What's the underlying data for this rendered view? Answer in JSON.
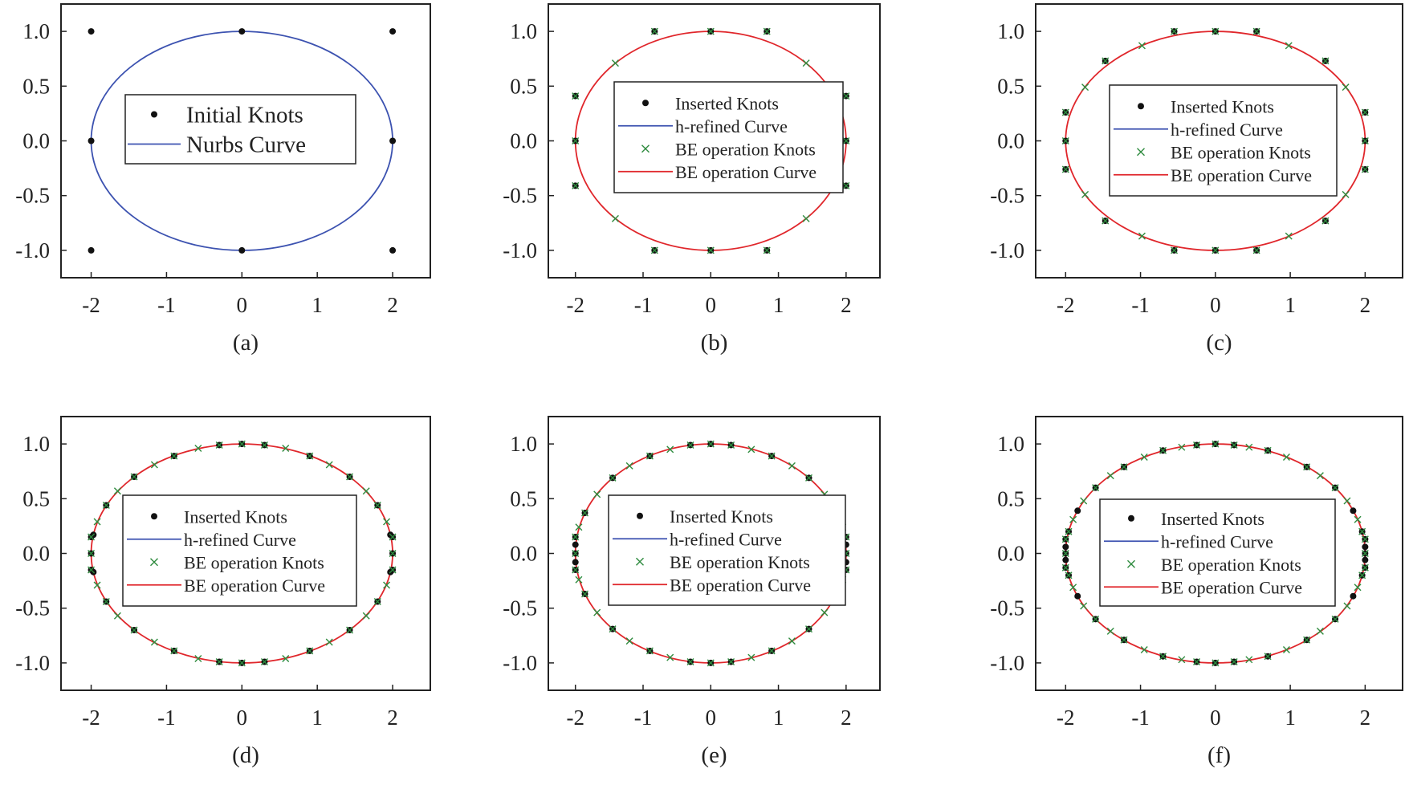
{
  "figure": {
    "colors": {
      "knots": "#111111",
      "nurbs_curve": "#3c52b0",
      "be_curve": "#e0262b",
      "be_knots": "#2e8b3e",
      "axes": "#222222"
    }
  },
  "chart_data": [
    {
      "type": "scatter",
      "caption": "(a)",
      "xlim": [
        -2.4,
        2.5
      ],
      "ylim": [
        -1.25,
        1.25
      ],
      "xticks": [
        "-2",
        "-1",
        "0",
        "1",
        "2"
      ],
      "yticks": [
        "1.0",
        "0.5",
        "0.0",
        "-0.5",
        "-1.0"
      ],
      "ellipse": {
        "a": 2,
        "b": 1
      },
      "curve_style": "nurbs",
      "legend_position": "center",
      "legend": [
        "Initial Knots",
        "Nurbs Curve"
      ],
      "series": [
        {
          "name": "Initial Knots",
          "marker": "dot",
          "x": [
            -2,
            -2,
            -2,
            0,
            0,
            2,
            2,
            2
          ],
          "y": [
            1,
            0,
            -1,
            1,
            -1,
            1,
            0,
            -1
          ]
        },
        {
          "name": "Nurbs Curve",
          "marker": "line",
          "equation": "x^2/4 + y^2 = 1"
        }
      ]
    },
    {
      "type": "scatter",
      "caption": "(b)",
      "xlim": [
        -2.4,
        2.5
      ],
      "ylim": [
        -1.25,
        1.25
      ],
      "xticks": [
        "-2",
        "-1",
        "0",
        "1",
        "2"
      ],
      "yticks": [
        "1.0",
        "0.5",
        "0.0",
        "-0.5",
        "-1.0"
      ],
      "ellipse": {
        "a": 2,
        "b": 1
      },
      "curve_style": "be",
      "legend_position": "center",
      "legend": [
        "Inserted Knots",
        "h-refined Curve",
        "BE operation Knots",
        "BE operation Curve"
      ],
      "series": [
        {
          "name": "Inserted Knots",
          "marker": "dot",
          "x": [
            -2,
            -2,
            -2,
            -0.83,
            -0.83,
            0,
            0,
            0.83,
            0.83,
            2,
            2,
            2
          ],
          "y": [
            0.41,
            0,
            -0.41,
            1,
            -1,
            1,
            -1,
            1,
            -1,
            0.41,
            0,
            -0.41
          ]
        },
        {
          "name": "BE operation Knots",
          "marker": "x",
          "x": [
            -2,
            -2,
            -2,
            -1.41,
            -1.41,
            -0.83,
            -0.83,
            0,
            0,
            0.83,
            0.83,
            1.41,
            1.41,
            2,
            2,
            2
          ],
          "y": [
            0.41,
            0,
            -0.41,
            0.71,
            -0.71,
            1,
            -1,
            1,
            -1,
            1,
            -1,
            0.71,
            -0.71,
            0.41,
            0,
            -0.41
          ]
        },
        {
          "name": "BE operation Curve",
          "marker": "line",
          "equation": "x^2/4 + y^2 = 1"
        }
      ]
    },
    {
      "type": "scatter",
      "caption": "(c)",
      "xlim": [
        -2.4,
        2.5
      ],
      "ylim": [
        -1.25,
        1.25
      ],
      "xticks": [
        "-2",
        "-1",
        "0",
        "1",
        "2"
      ],
      "yticks": [
        "1.0",
        "0.5",
        "0.0",
        "-0.5",
        "-1.0"
      ],
      "ellipse": {
        "a": 2,
        "b": 1
      },
      "curve_style": "be",
      "legend_position": "center",
      "legend": [
        "Inserted Knots",
        "h-refined Curve",
        "BE operation Knots",
        "BE operation Curve"
      ],
      "series": [
        {
          "name": "Inserted Knots",
          "marker": "dot",
          "x": [
            -2,
            -2,
            -2,
            -1.47,
            -1.47,
            -0.55,
            -0.55,
            0,
            0,
            0.55,
            0.55,
            1.47,
            1.47,
            2,
            2,
            2
          ],
          "y": [
            0.26,
            0,
            -0.26,
            0.73,
            -0.73,
            1,
            -1,
            1,
            -1,
            1,
            -1,
            0.73,
            -0.73,
            0.26,
            0,
            -0.26
          ]
        },
        {
          "name": "BE operation Knots",
          "marker": "x",
          "x": [
            -2,
            -2,
            -2,
            -1.74,
            -1.74,
            -1.47,
            -1.47,
            -0.98,
            -0.98,
            -0.55,
            -0.55,
            0,
            0,
            0.55,
            0.55,
            0.98,
            0.98,
            1.47,
            1.47,
            1.74,
            1.74,
            2,
            2,
            2
          ],
          "y": [
            0.26,
            0,
            -0.26,
            0.49,
            -0.49,
            0.73,
            -0.73,
            0.87,
            -0.87,
            1,
            -1,
            1,
            -1,
            1,
            -1,
            0.87,
            -0.87,
            0.73,
            -0.73,
            0.49,
            -0.49,
            0.26,
            0,
            -0.26
          ]
        },
        {
          "name": "BE operation Curve",
          "marker": "line",
          "equation": "x^2/4 + y^2 = 1"
        }
      ]
    },
    {
      "type": "scatter",
      "caption": "(d)",
      "xlim": [
        -2.4,
        2.5
      ],
      "ylim": [
        -1.25,
        1.25
      ],
      "xticks": [
        "-2",
        "-1",
        "0",
        "1",
        "2"
      ],
      "yticks": [
        "1.0",
        "0.5",
        "0.0",
        "-0.5",
        "-1.0"
      ],
      "ellipse": {
        "a": 2,
        "b": 1
      },
      "curve_style": "be",
      "legend_position": "center",
      "legend": [
        "Inserted Knots",
        "h-refined Curve",
        "BE operation Knots",
        "BE operation Curve"
      ],
      "series": [
        {
          "name": "Inserted Knots",
          "marker": "dot",
          "x": [
            -2,
            -2,
            -2,
            -1.97,
            -1.97,
            -1.8,
            -1.8,
            -1.43,
            -1.43,
            -0.9,
            -0.9,
            -0.3,
            -0.3,
            0,
            0,
            0.3,
            0.3,
            0.9,
            0.9,
            1.43,
            1.43,
            1.8,
            1.8,
            1.97,
            1.97,
            2,
            2,
            2
          ],
          "y": [
            0.15,
            0,
            -0.15,
            0.17,
            -0.17,
            0.44,
            -0.44,
            0.7,
            -0.7,
            0.89,
            -0.89,
            0.99,
            -0.99,
            1,
            -1,
            0.99,
            -0.99,
            0.89,
            -0.89,
            0.7,
            -0.7,
            0.44,
            -0.44,
            0.17,
            -0.17,
            0.15,
            0,
            -0.15
          ]
        },
        {
          "name": "BE operation Knots",
          "marker": "x",
          "x": [
            -2,
            -2,
            -2,
            -1.92,
            -1.92,
            -1.8,
            -1.8,
            -1.65,
            -1.65,
            -1.43,
            -1.43,
            -1.16,
            -1.16,
            -0.9,
            -0.9,
            -0.58,
            -0.58,
            -0.3,
            -0.3,
            0,
            0,
            0.3,
            0.3,
            0.58,
            0.58,
            0.9,
            0.9,
            1.16,
            1.16,
            1.43,
            1.43,
            1.65,
            1.65,
            1.8,
            1.8,
            1.92,
            1.92,
            2,
            2,
            2
          ],
          "y": [
            0.15,
            0,
            -0.15,
            0.29,
            -0.29,
            0.44,
            -0.44,
            0.57,
            -0.57,
            0.7,
            -0.7,
            0.81,
            -0.81,
            0.89,
            -0.89,
            0.96,
            -0.96,
            0.99,
            -0.99,
            1,
            -1,
            0.99,
            -0.99,
            0.96,
            -0.96,
            0.89,
            -0.89,
            0.81,
            -0.81,
            0.7,
            -0.7,
            0.57,
            -0.57,
            0.44,
            -0.44,
            0.29,
            -0.29,
            0.15,
            0,
            -0.15
          ]
        },
        {
          "name": "BE operation Curve",
          "marker": "line",
          "equation": "x^2/4 + y^2 = 1"
        }
      ]
    },
    {
      "type": "scatter",
      "caption": "(e)",
      "xlim": [
        -2.4,
        2.5
      ],
      "ylim": [
        -1.25,
        1.25
      ],
      "xticks": [
        "-2",
        "-1",
        "0",
        "1",
        "2"
      ],
      "yticks": [
        "1.0",
        "0.5",
        "0.0",
        "-0.5",
        "-1.0"
      ],
      "ellipse": {
        "a": 2,
        "b": 1
      },
      "curve_style": "be",
      "legend_position": "center",
      "legend": [
        "Inserted Knots",
        "h-refined Curve",
        "BE operation Knots",
        "BE operation Curve"
      ],
      "series": [
        {
          "name": "Inserted Knots",
          "marker": "dot",
          "x": [
            -2,
            -2,
            -2,
            -2,
            -2,
            -1.86,
            -1.86,
            -1.45,
            -1.45,
            -0.9,
            -0.9,
            -0.3,
            -0.3,
            0,
            0,
            0.3,
            0.3,
            0.9,
            0.9,
            1.45,
            1.45,
            1.86,
            1.86,
            2,
            2,
            2,
            2,
            2
          ],
          "y": [
            0.15,
            0.08,
            0,
            -0.08,
            -0.15,
            0.37,
            -0.37,
            0.69,
            -0.69,
            0.89,
            -0.89,
            0.99,
            -0.99,
            1,
            -1,
            0.99,
            -0.99,
            0.89,
            -0.89,
            0.69,
            -0.69,
            0.37,
            -0.37,
            0.15,
            0.08,
            0,
            -0.08,
            -0.15
          ]
        },
        {
          "name": "BE operation Knots",
          "marker": "x",
          "x": [
            -2,
            -2,
            -2,
            -1.95,
            -1.95,
            -1.86,
            -1.86,
            -1.68,
            -1.68,
            -1.45,
            -1.45,
            -1.2,
            -1.2,
            -0.9,
            -0.9,
            -0.6,
            -0.6,
            -0.3,
            -0.3,
            0,
            0,
            0.3,
            0.3,
            0.6,
            0.6,
            0.9,
            0.9,
            1.2,
            1.2,
            1.45,
            1.45,
            1.68,
            1.68,
            1.86,
            1.86,
            1.95,
            1.95,
            2,
            2,
            2
          ],
          "y": [
            0.15,
            0,
            -0.15,
            0.24,
            -0.24,
            0.37,
            -0.37,
            0.54,
            -0.54,
            0.69,
            -0.69,
            0.8,
            -0.8,
            0.89,
            -0.89,
            0.95,
            -0.95,
            0.99,
            -0.99,
            1,
            -1,
            0.99,
            -0.99,
            0.95,
            -0.95,
            0.89,
            -0.89,
            0.8,
            -0.8,
            0.69,
            -0.69,
            0.54,
            -0.54,
            0.37,
            -0.37,
            0.24,
            -0.24,
            0.15,
            0,
            -0.15
          ]
        },
        {
          "name": "BE operation Curve",
          "marker": "line",
          "equation": "x^2/4 + y^2 = 1"
        }
      ]
    },
    {
      "type": "scatter",
      "caption": "(f)",
      "xlim": [
        -2.4,
        2.5
      ],
      "ylim": [
        -1.25,
        1.25
      ],
      "xticks": [
        "-2",
        "-1",
        "0",
        "1",
        "2"
      ],
      "yticks": [
        "1.0",
        "0.5",
        "0.0",
        "-0.5",
        "-1.0"
      ],
      "ellipse": {
        "a": 2,
        "b": 1
      },
      "curve_style": "be",
      "legend_position": "center",
      "legend": [
        "Inserted Knots",
        "h-refined Curve",
        "BE operation Knots",
        "BE operation Curve"
      ],
      "series": [
        {
          "name": "Inserted Knots",
          "marker": "dot",
          "x": [
            -2,
            -2,
            -2,
            -2,
            -2,
            -1.96,
            -1.96,
            -1.84,
            -1.84,
            -1.6,
            -1.6,
            -1.22,
            -1.22,
            -0.7,
            -0.7,
            -0.25,
            -0.25,
            0,
            0,
            0.25,
            0.25,
            0.7,
            0.7,
            1.22,
            1.22,
            1.6,
            1.6,
            1.84,
            1.84,
            1.96,
            1.96,
            2,
            2,
            2,
            2,
            2
          ],
          "y": [
            0.13,
            0.06,
            0,
            -0.06,
            -0.13,
            0.2,
            -0.2,
            0.39,
            -0.39,
            0.6,
            -0.6,
            0.79,
            -0.79,
            0.94,
            -0.94,
            0.99,
            -0.99,
            1,
            -1,
            0.99,
            -0.99,
            0.94,
            -0.94,
            0.79,
            -0.79,
            0.6,
            -0.6,
            0.39,
            -0.39,
            0.2,
            -0.2,
            0.13,
            0.06,
            0,
            -0.06,
            -0.13
          ]
        },
        {
          "name": "BE operation Knots",
          "marker": "x",
          "x": [
            -2,
            -2,
            -2,
            -1.96,
            -1.96,
            -1.9,
            -1.9,
            -1.76,
            -1.76,
            -1.6,
            -1.6,
            -1.4,
            -1.4,
            -1.22,
            -1.22,
            -0.95,
            -0.95,
            -0.7,
            -0.7,
            -0.45,
            -0.45,
            -0.25,
            -0.25,
            0,
            0,
            0.25,
            0.25,
            0.45,
            0.45,
            0.7,
            0.7,
            0.95,
            0.95,
            1.22,
            1.22,
            1.4,
            1.4,
            1.6,
            1.6,
            1.76,
            1.76,
            1.9,
            1.9,
            1.96,
            1.96,
            2,
            2,
            2
          ],
          "y": [
            0.13,
            0,
            -0.13,
            0.2,
            -0.2,
            0.31,
            -0.31,
            0.48,
            -0.48,
            0.6,
            -0.6,
            0.71,
            -0.71,
            0.79,
            -0.79,
            0.88,
            -0.88,
            0.94,
            -0.94,
            0.97,
            -0.97,
            0.99,
            -0.99,
            1,
            -1,
            0.99,
            -0.99,
            0.97,
            -0.97,
            0.94,
            -0.94,
            0.88,
            -0.88,
            0.79,
            -0.79,
            0.71,
            -0.71,
            0.6,
            -0.6,
            0.48,
            -0.48,
            0.31,
            -0.31,
            0.2,
            -0.2,
            0.13,
            0,
            -0.13
          ]
        },
        {
          "name": "BE operation Curve",
          "marker": "line",
          "equation": "x^2/4 + y^2 = 1"
        }
      ]
    }
  ]
}
